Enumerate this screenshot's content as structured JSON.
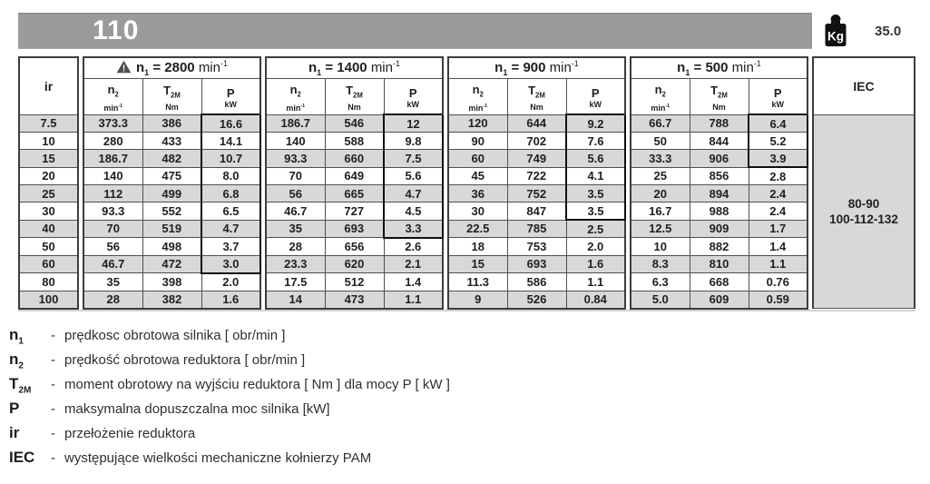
{
  "header": {
    "model": "110",
    "weight_unit": "Kg",
    "weight_value": "35.0"
  },
  "table": {
    "ir_header": "ir",
    "iec_header": "IEC",
    "iec_values": [
      "80-90",
      "100-112-132"
    ],
    "col_symbols": [
      {
        "key": "n2",
        "base": "n",
        "sub": "2",
        "unit": "min",
        "unit_sup": "-1"
      },
      {
        "key": "t2m",
        "base": "T",
        "sub": "2M",
        "unit": "Nm",
        "unit_sup": ""
      },
      {
        "key": "p",
        "base": "P",
        "sub": "",
        "unit": "kW",
        "unit_sup": ""
      }
    ],
    "groups": [
      {
        "base": "n",
        "sub": "1",
        "eq": "=",
        "value": "2800",
        "unit": "min",
        "unit_sup": "-1",
        "warning": true,
        "boxed_rows": 9
      },
      {
        "base": "n",
        "sub": "1",
        "eq": "=",
        "value": "1400",
        "unit": "min",
        "unit_sup": "-1",
        "warning": false,
        "boxed_rows": 7
      },
      {
        "base": "n",
        "sub": "1",
        "eq": "=",
        "value": "900",
        "unit": "min",
        "unit_sup": "-1",
        "warning": false,
        "boxed_rows": 6
      },
      {
        "base": "n",
        "sub": "1",
        "eq": "=",
        "value": "500",
        "unit": "min",
        "unit_sup": "-1",
        "warning": false,
        "boxed_rows": 3
      }
    ],
    "rows": [
      {
        "ir": "7.5",
        "values": [
          [
            "373.3",
            "386",
            "16.6"
          ],
          [
            "186.7",
            "546",
            "12"
          ],
          [
            "120",
            "644",
            "9.2"
          ],
          [
            "66.7",
            "788",
            "6.4"
          ]
        ]
      },
      {
        "ir": "10",
        "values": [
          [
            "280",
            "433",
            "14.1"
          ],
          [
            "140",
            "588",
            "9.8"
          ],
          [
            "90",
            "702",
            "7.6"
          ],
          [
            "50",
            "844",
            "5.2"
          ]
        ]
      },
      {
        "ir": "15",
        "values": [
          [
            "186.7",
            "482",
            "10.7"
          ],
          [
            "93.3",
            "660",
            "7.5"
          ],
          [
            "60",
            "749",
            "5.6"
          ],
          [
            "33.3",
            "906",
            "3.9"
          ]
        ]
      },
      {
        "ir": "20",
        "values": [
          [
            "140",
            "475",
            "8.0"
          ],
          [
            "70",
            "649",
            "5.6"
          ],
          [
            "45",
            "722",
            "4.1"
          ],
          [
            "25",
            "856",
            "2.8"
          ]
        ]
      },
      {
        "ir": "25",
        "values": [
          [
            "112",
            "499",
            "6.8"
          ],
          [
            "56",
            "665",
            "4.7"
          ],
          [
            "36",
            "752",
            "3.5"
          ],
          [
            "20",
            "894",
            "2.4"
          ]
        ]
      },
      {
        "ir": "30",
        "values": [
          [
            "93.3",
            "552",
            "6.5"
          ],
          [
            "46.7",
            "727",
            "4.5"
          ],
          [
            "30",
            "847",
            "3.5"
          ],
          [
            "16.7",
            "988",
            "2.4"
          ]
        ]
      },
      {
        "ir": "40",
        "values": [
          [
            "70",
            "519",
            "4.7"
          ],
          [
            "35",
            "693",
            "3.3"
          ],
          [
            "22.5",
            "785",
            "2.5"
          ],
          [
            "12.5",
            "909",
            "1.7"
          ]
        ]
      },
      {
        "ir": "50",
        "values": [
          [
            "56",
            "498",
            "3.7"
          ],
          [
            "28",
            "656",
            "2.6"
          ],
          [
            "18",
            "753",
            "2.0"
          ],
          [
            "10",
            "882",
            "1.4"
          ]
        ]
      },
      {
        "ir": "60",
        "values": [
          [
            "46.7",
            "472",
            "3.0"
          ],
          [
            "23.3",
            "620",
            "2.1"
          ],
          [
            "15",
            "693",
            "1.6"
          ],
          [
            "8.3",
            "810",
            "1.1"
          ]
        ]
      },
      {
        "ir": "80",
        "values": [
          [
            "35",
            "398",
            "2.0"
          ],
          [
            "17.5",
            "512",
            "1.4"
          ],
          [
            "11.3",
            "586",
            "1.1"
          ],
          [
            "6.3",
            "668",
            "0.76"
          ]
        ]
      },
      {
        "ir": "100",
        "values": [
          [
            "28",
            "382",
            "1.6"
          ],
          [
            "14",
            "473",
            "1.1"
          ],
          [
            "9",
            "526",
            "0.84"
          ],
          [
            "5.0",
            "609",
            "0.59"
          ]
        ]
      }
    ]
  },
  "legend": [
    {
      "base": "n",
      "sub": "1",
      "dash": "-",
      "text": "prędkosc obrotowa silnika [ obr/min ]"
    },
    {
      "base": "n",
      "sub": "2",
      "dash": "-",
      "text": "prędkość obrotowa reduktora [ obr/min ]"
    },
    {
      "base": "T",
      "sub": "2M",
      "dash": "-",
      "text": "moment obrotowy na wyjściu reduktora [ Nm ] dla mocy P  [ kW ]"
    },
    {
      "base": "P",
      "sub": "",
      "dash": "-",
      "text": "maksymalna dopuszczalna moc silnika [kW]"
    },
    {
      "base": "ir",
      "sub": "",
      "dash": "-",
      "text": "przełożenie reduktora"
    },
    {
      "base": "IEC",
      "sub": "",
      "dash": "-",
      "text": "występujące wielkości mechaniczne kołnierzy PAM"
    }
  ],
  "colors": {
    "header_bar": "#9b9b9b",
    "row_shade": "#d8d8d8",
    "border": "#3d3d3d"
  }
}
